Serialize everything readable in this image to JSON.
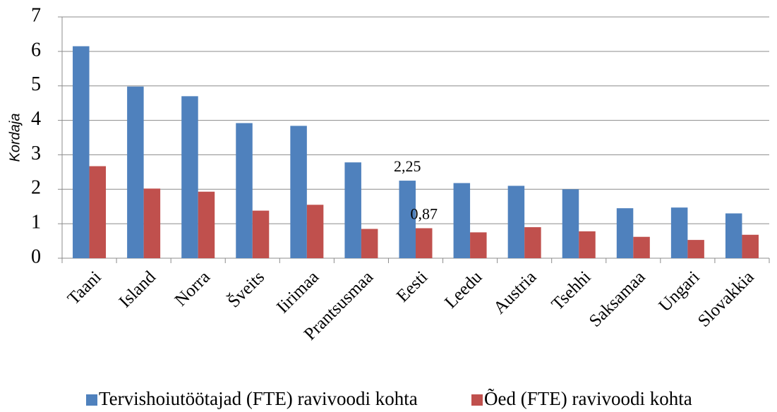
{
  "chart_data": {
    "type": "bar",
    "y_label": "Kordaja",
    "categories": [
      "Taani",
      "Island",
      "Norra",
      "Šveits",
      "Iirimaa",
      "Prantsusmaa",
      "Eesti",
      "Leedu",
      "Austria",
      "Tsehhi",
      "Saksamaa",
      "Ungari",
      "Slovakkia"
    ],
    "series": [
      {
        "name": "Tervishoiutöötajad (FTE) ravivoodi kohta",
        "color": "#4f81bd",
        "values": [
          6.15,
          4.98,
          4.7,
          3.92,
          3.84,
          2.78,
          2.25,
          2.18,
          2.1,
          2.0,
          1.45,
          1.47,
          1.3
        ],
        "value_labels": [
          null,
          null,
          null,
          null,
          null,
          null,
          "2,25",
          null,
          null,
          null,
          null,
          null,
          null
        ]
      },
      {
        "name": "Õed (FTE) ravivoodi kohta",
        "color": "#c0504d",
        "values": [
          2.67,
          2.02,
          1.93,
          1.38,
          1.55,
          0.85,
          0.87,
          0.75,
          0.9,
          0.78,
          0.62,
          0.53,
          0.68
        ],
        "value_labels": [
          null,
          null,
          null,
          null,
          null,
          null,
          "0,87",
          null,
          null,
          null,
          null,
          null,
          null
        ]
      }
    ],
    "ylim": [
      0,
      7
    ],
    "yticks": [
      0,
      1,
      2,
      3,
      4,
      5,
      6,
      7
    ],
    "grid": true,
    "legend": "bottom"
  }
}
